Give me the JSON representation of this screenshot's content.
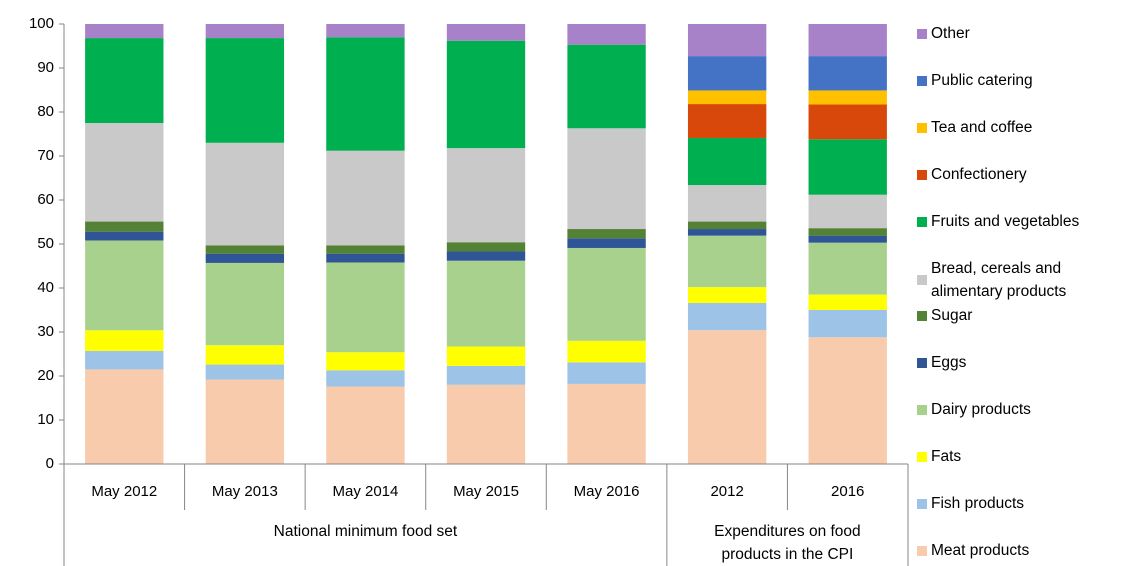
{
  "chart_data": {
    "type": "stacked_bar",
    "groups": [
      {
        "name": "National minimum food set",
        "categories": [
          "May 2012",
          "May 2013",
          "May 2014",
          "May 2015",
          "May 2016"
        ]
      },
      {
        "name": "Expenditures on food products in the CPI",
        "categories": [
          "2012",
          "2016"
        ]
      }
    ],
    "ylim": [
      0,
      100
    ],
    "yticks": [
      0,
      10,
      20,
      30,
      40,
      50,
      60,
      70,
      80,
      90,
      100
    ],
    "legend": "right",
    "series": [
      {
        "name": "Meat products",
        "color": "#f8cbad",
        "values": [
          21.5,
          19.2,
          17.6,
          18.0,
          18.2,
          30.4,
          28.8
        ]
      },
      {
        "name": "Fish products",
        "color": "#9dc3e6",
        "values": [
          4.2,
          3.4,
          3.7,
          4.3,
          4.9,
          6.2,
          6.2
        ]
      },
      {
        "name": "Fats",
        "color": "#ffff00",
        "values": [
          4.7,
          4.4,
          4.1,
          4.4,
          4.9,
          3.6,
          3.5
        ]
      },
      {
        "name": "Dairy products",
        "color": "#a9d18e",
        "values": [
          20.4,
          18.7,
          20.4,
          19.5,
          21.1,
          11.7,
          11.8
        ]
      },
      {
        "name": "Eggs",
        "color": "#2f5597",
        "values": [
          2.0,
          2.1,
          2.0,
          2.1,
          2.2,
          1.5,
          1.6
        ]
      },
      {
        "name": "Sugar",
        "color": "#548235",
        "values": [
          2.3,
          1.9,
          1.9,
          2.1,
          2.1,
          1.7,
          1.7
        ]
      },
      {
        "name": "Bread, cereals and alimentary products",
        "color": "#c9c9c9",
        "values": [
          22.4,
          23.3,
          21.5,
          21.4,
          22.9,
          8.3,
          7.6
        ]
      },
      {
        "name": "Fruits and vegetables",
        "color": "#00b050",
        "values": [
          19.3,
          23.8,
          25.8,
          24.4,
          19.0,
          10.7,
          12.6
        ]
      },
      {
        "name": "Confectionery",
        "color": "#d9480b",
        "values": [
          null,
          null,
          null,
          null,
          null,
          7.7,
          7.9
        ]
      },
      {
        "name": "Tea and coffee",
        "color": "#ffc000",
        "values": [
          null,
          null,
          null,
          null,
          null,
          3.1,
          3.2
        ]
      },
      {
        "name": "Public catering",
        "color": "#4472c4",
        "values": [
          null,
          null,
          null,
          null,
          null,
          7.8,
          7.8
        ]
      },
      {
        "name": "Other",
        "color": "#a882c8",
        "values": [
          3.2,
          3.2,
          3.0,
          3.8,
          4.7,
          7.3,
          7.3
        ]
      }
    ]
  }
}
